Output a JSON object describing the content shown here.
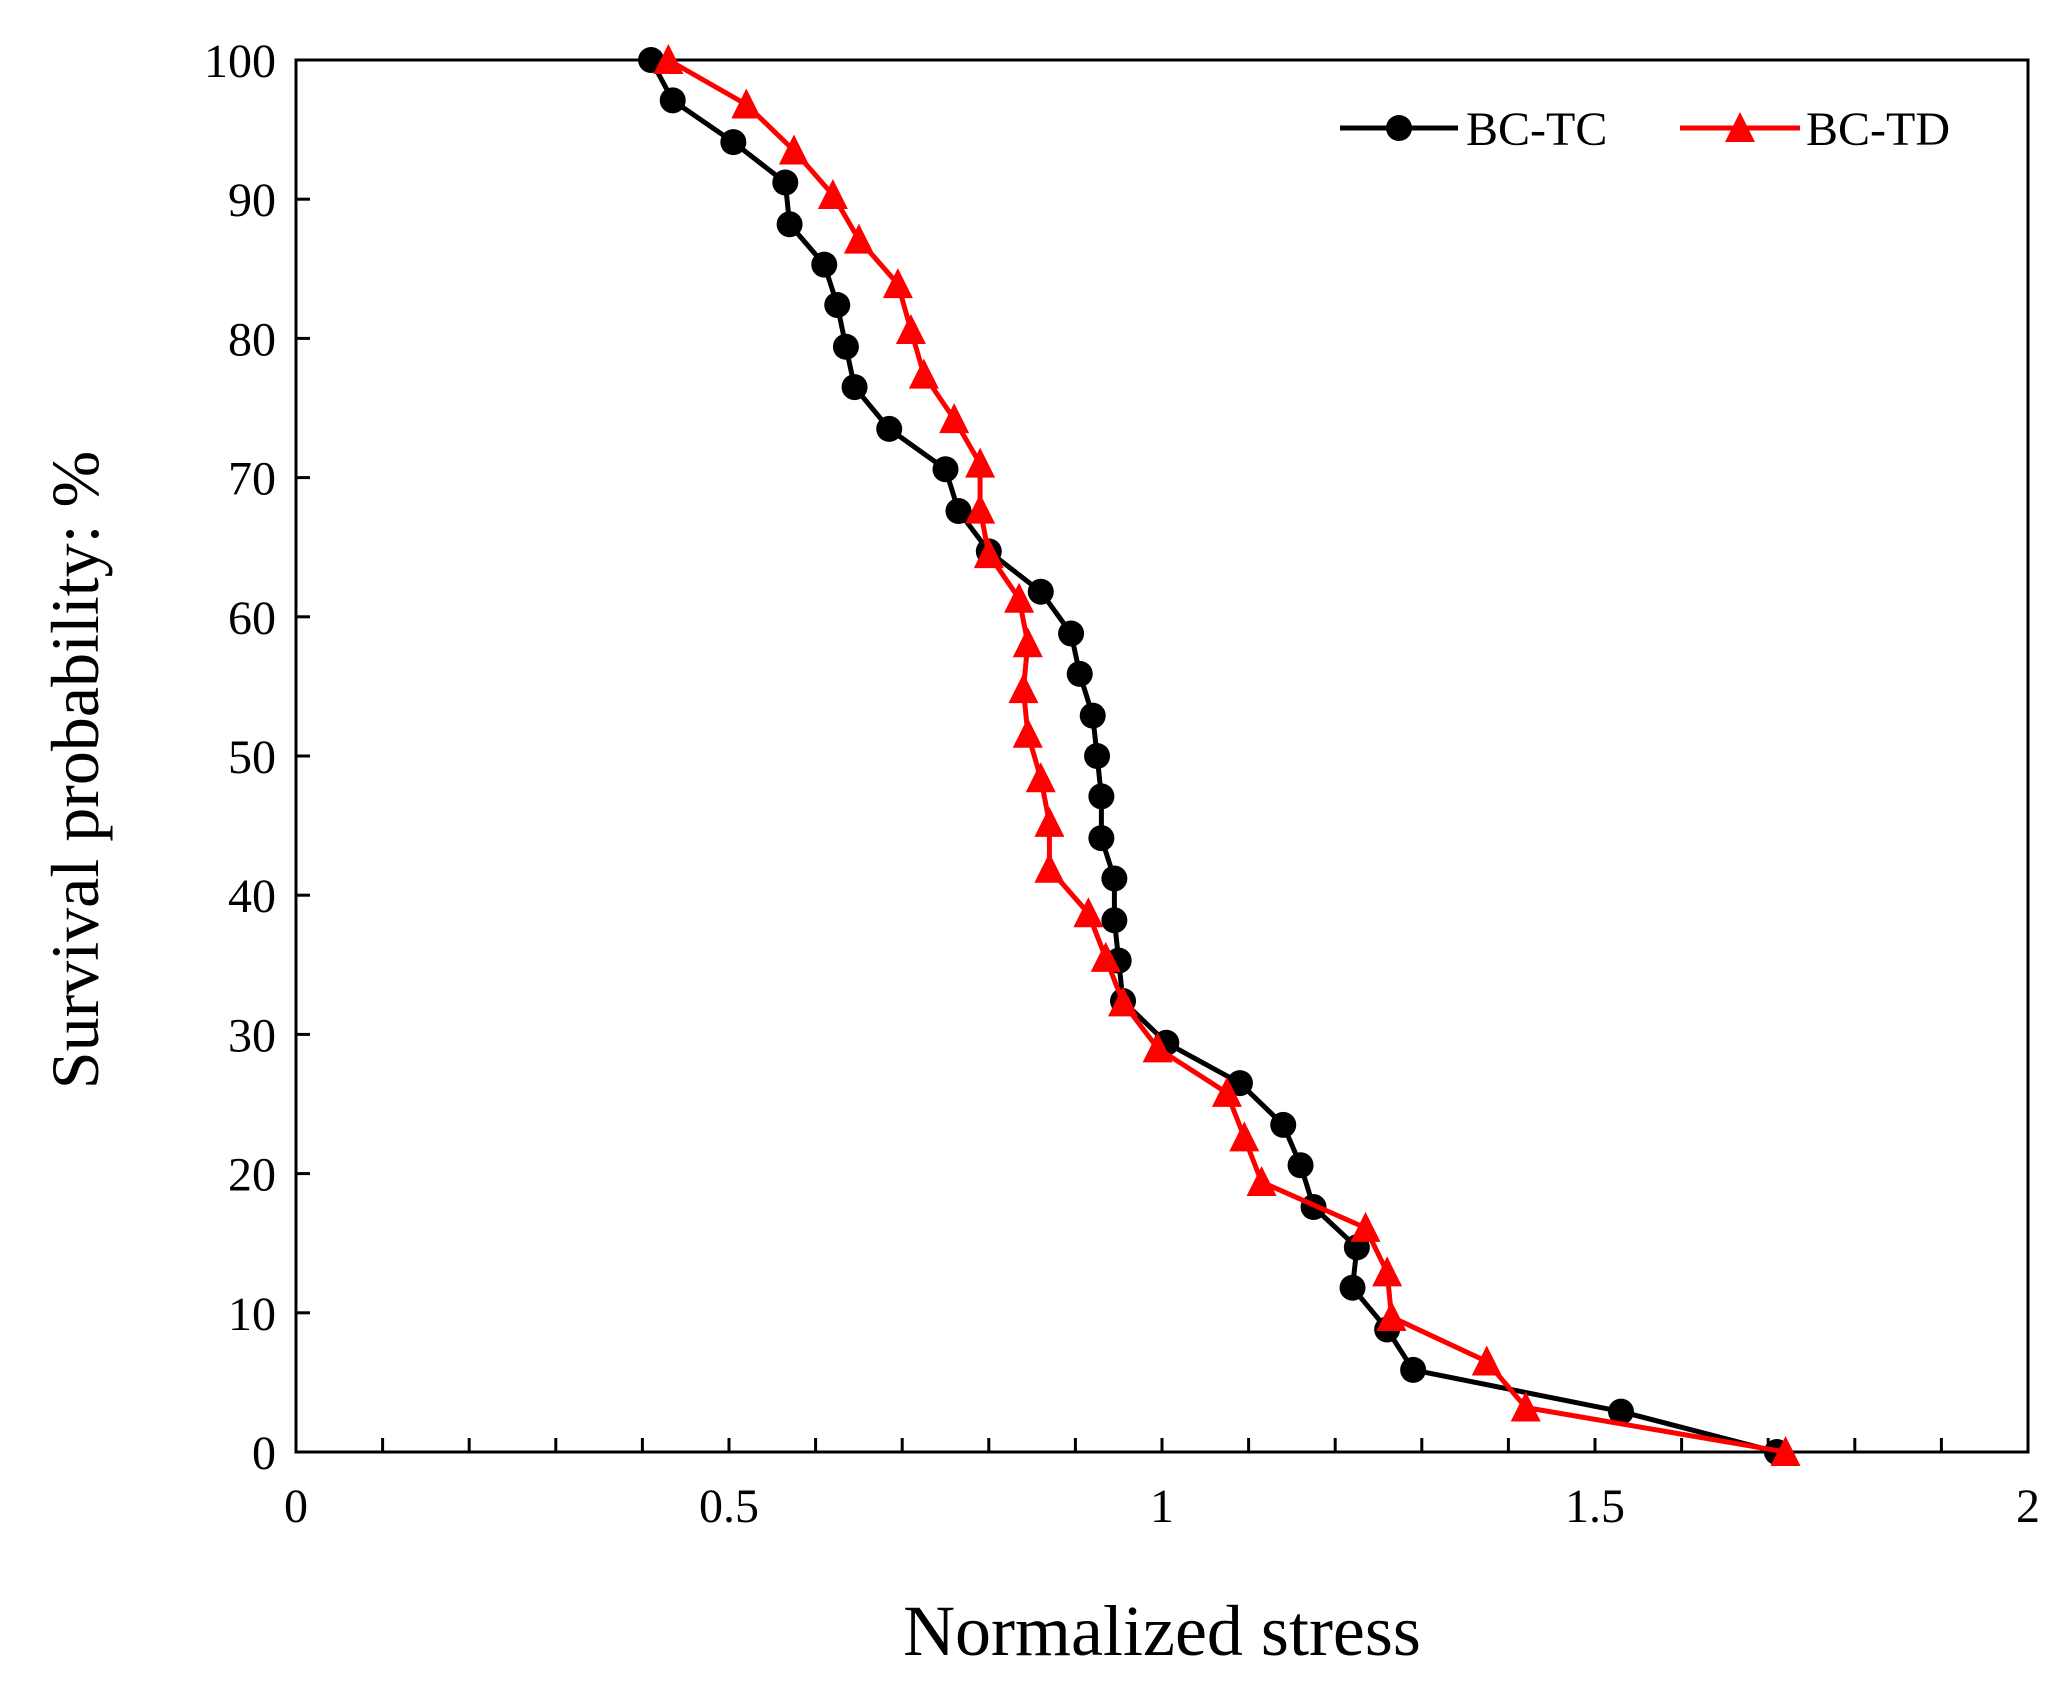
{
  "chart_data": {
    "type": "line",
    "title": "",
    "xlabel": "Normalized stress",
    "ylabel": "Survival probability: %",
    "xlim": [
      0,
      2
    ],
    "ylim": [
      0,
      100
    ],
    "xticks": [
      0,
      0.5,
      1,
      1.5,
      2
    ],
    "xtick_labels": [
      "0",
      "0.5",
      "1",
      "1.5",
      "2"
    ],
    "xminor_step": 0.1,
    "yticks": [
      0,
      10,
      20,
      30,
      40,
      50,
      60,
      70,
      80,
      90,
      100
    ],
    "ytick_labels": [
      "0",
      "10",
      "20",
      "30",
      "40",
      "50",
      "60",
      "70",
      "80",
      "90",
      "100"
    ],
    "grid": false,
    "legend_position": "top-right",
    "series": [
      {
        "name": "BC-TC",
        "color": "#000000",
        "marker": "circle",
        "x": [
          0.41,
          0.435,
          0.505,
          0.565,
          0.57,
          0.61,
          0.625,
          0.635,
          0.645,
          0.685,
          0.75,
          0.765,
          0.8,
          0.86,
          0.895,
          0.905,
          0.92,
          0.925,
          0.93,
          0.93,
          0.945,
          0.945,
          0.95,
          0.955,
          1.005,
          1.09,
          1.14,
          1.16,
          1.175,
          1.225,
          1.22,
          1.26,
          1.29,
          1.53,
          1.71
        ],
        "y": [
          100,
          97.1,
          94.1,
          91.2,
          88.2,
          85.3,
          82.4,
          79.4,
          76.5,
          73.5,
          70.6,
          67.6,
          64.7,
          61.8,
          58.8,
          55.9,
          52.9,
          50,
          47.1,
          44.1,
          41.2,
          38.2,
          35.3,
          32.4,
          29.4,
          26.5,
          23.5,
          20.6,
          17.6,
          14.7,
          11.8,
          8.8,
          5.9,
          2.9,
          0
        ]
      },
      {
        "name": "BC-TD",
        "color": "#ff0000",
        "marker": "triangle",
        "x": [
          0.43,
          0.52,
          0.575,
          0.62,
          0.65,
          0.695,
          0.71,
          0.725,
          0.76,
          0.79,
          0.79,
          0.8,
          0.835,
          0.845,
          0.84,
          0.845,
          0.86,
          0.87,
          0.87,
          0.915,
          0.935,
          0.955,
          0.995,
          1.075,
          1.095,
          1.115,
          1.235,
          1.26,
          1.265,
          1.375,
          1.42,
          1.72
        ],
        "y": [
          100,
          96.8,
          93.5,
          90.3,
          87.1,
          83.9,
          80.6,
          77.4,
          74.2,
          71,
          67.7,
          64.5,
          61.3,
          58.1,
          54.8,
          51.6,
          48.4,
          45.2,
          41.9,
          38.7,
          35.5,
          32.3,
          29,
          25.8,
          22.6,
          19.4,
          16.1,
          12.9,
          9.7,
          6.5,
          3.2,
          0
        ]
      }
    ]
  }
}
